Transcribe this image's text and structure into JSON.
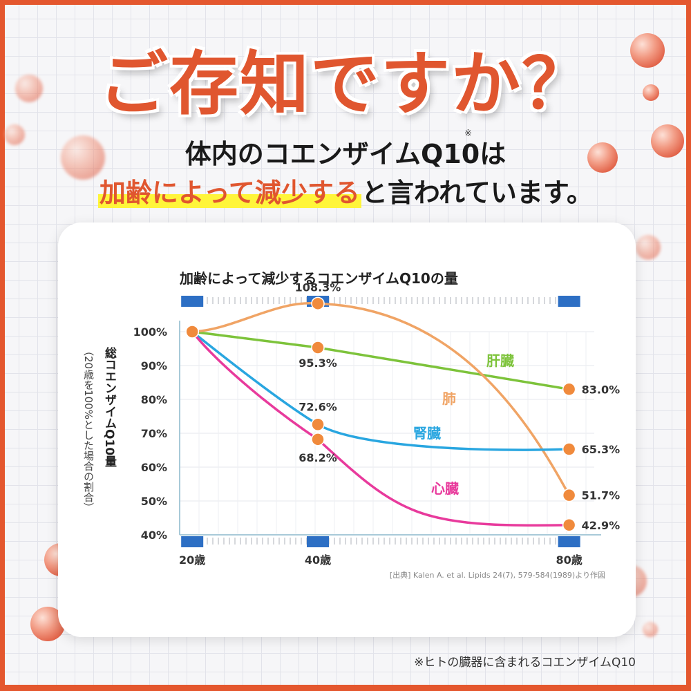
{
  "headline": "ご存知ですか？",
  "subtitle_line1": "体内のコエンザイムQ10は",
  "subtitle_mark": "※",
  "subtitle_line2_highlight": "加齢によって減少する",
  "subtitle_line2_rest": "と言われています。",
  "footnote": "※ヒトの臓器に含まれるコエンザイムQ10",
  "colors": {
    "accent": "#e0562f",
    "highlight": "#fff53a",
    "heart": "#e83a9c",
    "kidney": "#29a6e0",
    "liver": "#7dc33b",
    "lung": "#f0a465",
    "marker": "#f08a3c"
  },
  "chart_data": {
    "type": "line",
    "title": "加齢によって減少するコエンザイムQ10の量",
    "ylabel": "総コエンザイムQ10量",
    "ylabel_note": "（20歳を100%とした場合の割合）",
    "x": [
      "20歳",
      "40歳",
      "80歳"
    ],
    "x_values": [
      20,
      40,
      80
    ],
    "xlim": [
      18,
      84
    ],
    "ylim": [
      40,
      100
    ],
    "yticks": [
      "40%",
      "50%",
      "60%",
      "70%",
      "80%",
      "90%",
      "100%"
    ],
    "ytick_values": [
      40,
      50,
      60,
      70,
      80,
      90,
      100
    ],
    "grid": true,
    "series": [
      {
        "name": "肝臓",
        "values": [
          100,
          95.3,
          83.0
        ],
        "labels": [
          "",
          "95.3%",
          "83.0%"
        ]
      },
      {
        "name": "肺",
        "values": [
          100,
          108.3,
          51.7
        ],
        "labels": [
          "",
          "108.3%",
          "51.7%"
        ]
      },
      {
        "name": "腎臓",
        "values": [
          100,
          72.6,
          65.3
        ],
        "labels": [
          "",
          "72.6%",
          "65.3%"
        ]
      },
      {
        "name": "心臓",
        "values": [
          100,
          68.2,
          42.9
        ],
        "labels": [
          "",
          "68.2%",
          "42.9%"
        ]
      }
    ],
    "source": "[出典] Kalen A. et al. Lipids 24(7), 579-584(1989)より作図"
  }
}
